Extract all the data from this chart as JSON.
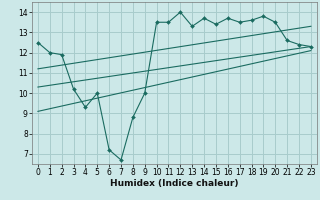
{
  "xlabel": "Humidex (Indice chaleur)",
  "background_color": "#cce8e8",
  "grid_color": "#a8cccc",
  "line_color": "#1a6b60",
  "xlim": [
    -0.5,
    23.5
  ],
  "ylim": [
    6.5,
    14.5
  ],
  "xticks": [
    0,
    1,
    2,
    3,
    4,
    5,
    6,
    7,
    8,
    9,
    10,
    11,
    12,
    13,
    14,
    15,
    16,
    17,
    18,
    19,
    20,
    21,
    22,
    23
  ],
  "yticks": [
    7,
    8,
    9,
    10,
    11,
    12,
    13,
    14
  ],
  "series1_x": [
    0,
    1,
    2,
    3,
    4,
    5,
    6,
    7,
    8,
    9,
    10,
    11,
    12,
    13,
    14,
    15,
    16,
    17,
    18,
    19,
    20,
    21,
    22,
    23
  ],
  "series1_y": [
    12.5,
    12.0,
    11.9,
    10.2,
    9.3,
    10.0,
    7.2,
    6.7,
    8.8,
    10.0,
    13.5,
    13.5,
    14.0,
    13.3,
    13.7,
    13.4,
    13.7,
    13.5,
    13.6,
    13.8,
    13.5,
    12.6,
    12.4,
    12.3
  ],
  "trend1_x": [
    0,
    23
  ],
  "trend1_y": [
    11.2,
    13.3
  ],
  "trend2_x": [
    0,
    23
  ],
  "trend2_y": [
    10.3,
    12.3
  ],
  "trend3_x": [
    0,
    23
  ],
  "trend3_y": [
    9.1,
    12.1
  ]
}
